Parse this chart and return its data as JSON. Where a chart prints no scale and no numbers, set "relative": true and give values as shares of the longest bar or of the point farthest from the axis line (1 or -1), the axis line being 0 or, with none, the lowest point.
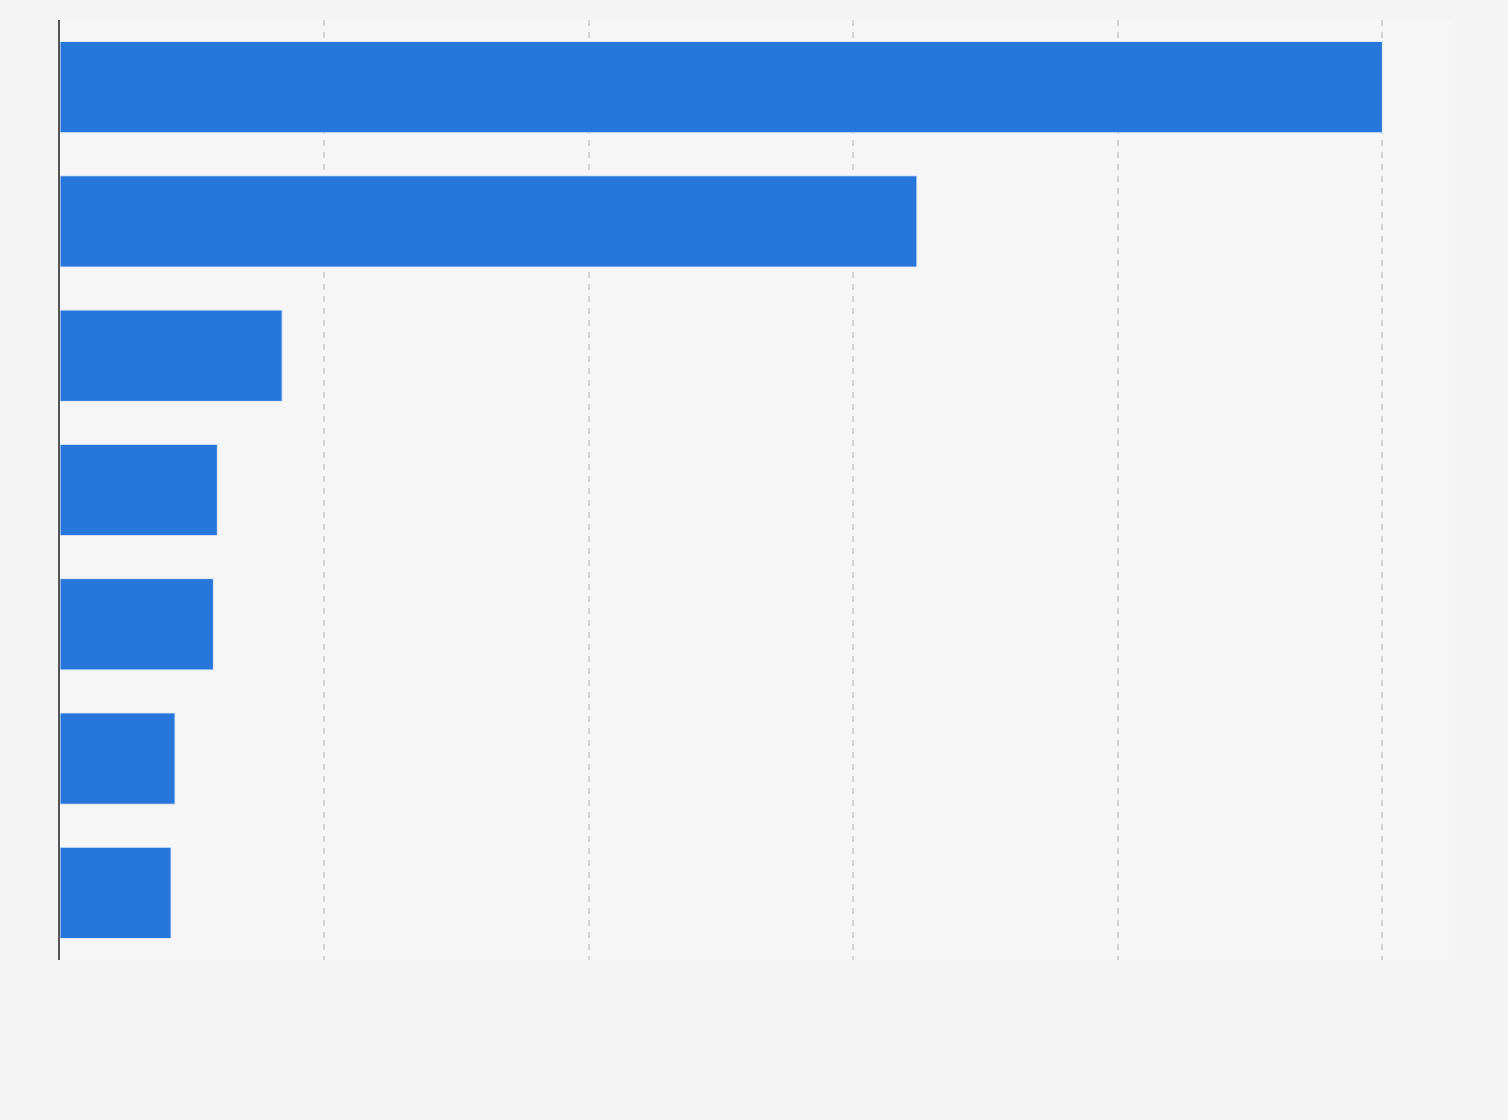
{
  "chart_data": {
    "type": "bar",
    "orientation": "horizontal",
    "relative": true,
    "grid": "x",
    "color": "#2776db",
    "categories": [
      null,
      null,
      null,
      null,
      null,
      null,
      null
    ],
    "values": [
      1,
      0.648,
      0.168,
      0.119,
      0.116,
      0.087,
      0.084
    ]
  }
}
